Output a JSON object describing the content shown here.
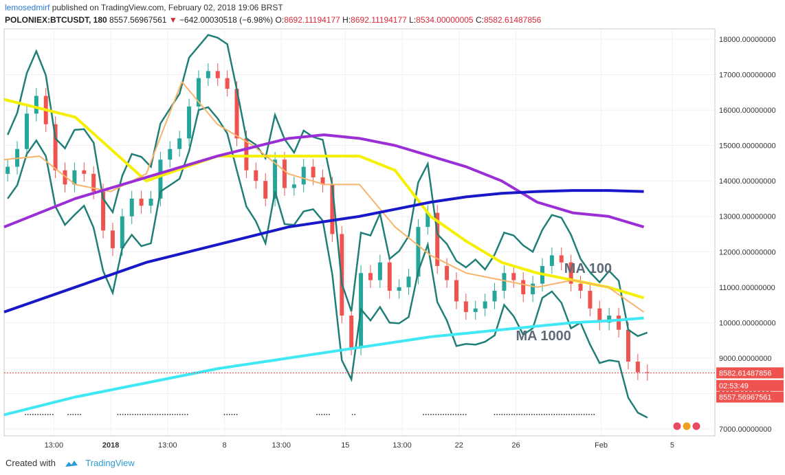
{
  "header": {
    "user": "lemosedmirf",
    "published": "published on TradingView.com, February 02, 2018 19:06 BRST",
    "symbol": "POLONIEX:BTCUSDT, 180",
    "last": "8557.56967561",
    "change": "−642.00030518 (−6.98%)",
    "o_label": "O:",
    "o_value": "8692.11194177",
    "h_label": "H:",
    "h_value": "8692.11194177",
    "l_label": "L:",
    "l_value": "8534.00000005",
    "c_label": "C:",
    "c_value": "8582.61487856"
  },
  "footer": {
    "created_with": "Created with",
    "brand": "TradingView"
  },
  "colors": {
    "up": "#26a69a",
    "down": "#ef5350",
    "bollinger": "#1f7f77",
    "ma_yellow": "#f5ef00",
    "ma_orange": "#f8b46a",
    "ma_purple": "#9b2fd6",
    "ma_blue": "#1818c8",
    "ma_cyan": "#40e8f4",
    "price_line": "#e8393b",
    "badge_bg": "#ef5350",
    "badge_text": "#ffffff"
  },
  "chart_data": {
    "type": "line",
    "ylim": [
      7000,
      18000
    ],
    "grid": true,
    "yticks": [
      "7000.00000000",
      "8000.00000000",
      "9000.00000000",
      "10000.00000000",
      "11000.00000000",
      "12000.00000000",
      "13000.00000000",
      "14000.00000000",
      "15000.00000000",
      "16000.00000000",
      "17000.00000000",
      "18000.00000000"
    ],
    "ytick_values": [
      7000,
      8000,
      9000,
      10000,
      11000,
      12000,
      13000,
      14000,
      15000,
      16000,
      17000,
      18000
    ],
    "xticks": [
      "13:00",
      "2018",
      "13:00",
      "8",
      "13:00",
      "15",
      "13:00",
      "22",
      "26",
      "Feb",
      "5"
    ],
    "xtick_bold": [
      false,
      true,
      false,
      false,
      false,
      false,
      false,
      false,
      false,
      false,
      false
    ],
    "annotations": [
      {
        "text": "MA 100",
        "x": 0.788,
        "y": 11400
      },
      {
        "text": "MA 1000",
        "x": 0.72,
        "y": 9500
      }
    ],
    "price_badges": [
      {
        "text": "8582.61487856",
        "y": 8582.61
      },
      {
        "text": "02:53:49",
        "y": 8225
      },
      {
        "text": "8557.56967561",
        "y": 7900
      }
    ],
    "last_price": 8582.61,
    "candles_close": [
      14400,
      14900,
      15900,
      16400,
      15600,
      14300,
      13900,
      14300,
      14200,
      13700,
      12600,
      12100,
      13000,
      13500,
      13300,
      13500,
      14600,
      14900,
      15200,
      16100,
      16900,
      17100,
      16900,
      16600,
      15200,
      14300,
      14000,
      13500,
      14600,
      13800,
      13900,
      14400,
      14100,
      13900,
      12500,
      10200,
      9300,
      11400,
      11200,
      11700,
      10900,
      11000,
      11300,
      12700,
      13100,
      11600,
      11200,
      10600,
      10300,
      10400,
      10600,
      10900,
      11400,
      11200,
      10800,
      11100,
      11600,
      11900,
      11700,
      11100,
      10900,
      10400,
      10000,
      10200,
      9800,
      8900,
      8600,
      8580
    ],
    "series": [
      {
        "name": "MA 100",
        "color": "#f5ef00",
        "x": [
          0,
          0.1,
          0.2,
          0.3,
          0.4,
          0.5,
          0.55,
          0.6,
          0.65,
          0.7,
          0.75,
          0.8,
          0.85,
          0.9
        ],
        "values": [
          16300,
          15800,
          14000,
          14700,
          14700,
          14700,
          14300,
          13000,
          12300,
          11700,
          11400,
          11200,
          11000,
          10700
        ]
      },
      {
        "name": "",
        "color": "#f8b46a",
        "x": [
          0,
          0.05,
          0.1,
          0.15,
          0.2,
          0.25,
          0.3,
          0.35,
          0.4,
          0.45,
          0.5,
          0.55,
          0.6,
          0.65,
          0.7,
          0.75,
          0.8,
          0.85,
          0.9
        ],
        "values": [
          14600,
          14700,
          13900,
          13700,
          14200,
          16800,
          15600,
          15000,
          14200,
          13900,
          13900,
          12700,
          11900,
          11400,
          11200,
          11000,
          11200,
          11000,
          10300
        ]
      },
      {
        "name": "",
        "color": "#9b2fd6",
        "x": [
          0,
          0.1,
          0.2,
          0.3,
          0.4,
          0.45,
          0.5,
          0.55,
          0.6,
          0.65,
          0.7,
          0.75,
          0.8,
          0.85,
          0.9
        ],
        "values": [
          12700,
          13500,
          14100,
          14700,
          15200,
          15300,
          15200,
          15000,
          14700,
          14400,
          14000,
          13400,
          13100,
          13000,
          12700
        ]
      },
      {
        "name": "",
        "color": "#1818c8",
        "x": [
          0,
          0.1,
          0.2,
          0.3,
          0.4,
          0.5,
          0.55,
          0.6,
          0.65,
          0.7,
          0.75,
          0.8,
          0.85,
          0.9
        ],
        "values": [
          10300,
          11000,
          11700,
          12200,
          12700,
          13000,
          13200,
          13400,
          13550,
          13650,
          13700,
          13730,
          13730,
          13700
        ]
      },
      {
        "name": "MA 1000",
        "color": "#40e8f4",
        "x": [
          0,
          0.1,
          0.2,
          0.3,
          0.4,
          0.5,
          0.55,
          0.6,
          0.65,
          0.7,
          0.75,
          0.8,
          0.85,
          0.9
        ],
        "values": [
          7400,
          7900,
          8300,
          8700,
          9000,
          9300,
          9450,
          9600,
          9700,
          9800,
          9900,
          10000,
          10050,
          10130
        ]
      }
    ]
  }
}
